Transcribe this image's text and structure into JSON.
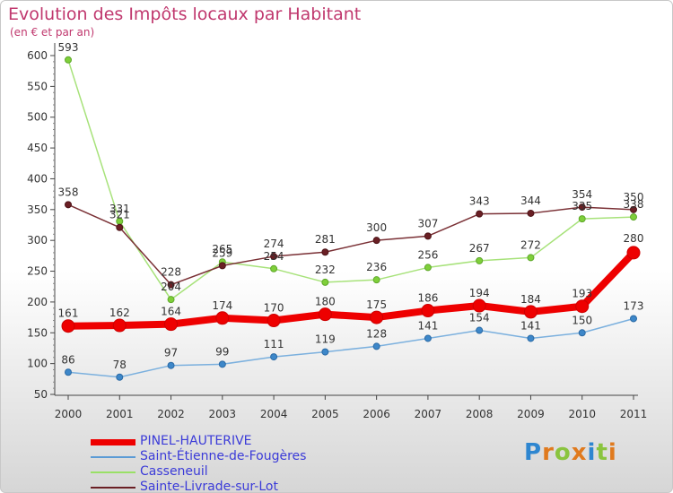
{
  "header": {
    "title": "Evolution des Impôts locaux par Habitant",
    "subtitle": "(en € et par an)"
  },
  "logo": {
    "letters": [
      "P",
      "r",
      "o",
      "x",
      "i",
      "t",
      "i"
    ],
    "colors": [
      "#2e86d0",
      "#e07a1e",
      "#8ac43f",
      "#e07a1e",
      "#2e86d0",
      "#8ac43f",
      "#e07a1e"
    ]
  },
  "chart_data": {
    "type": "line",
    "title": "Evolution des Impôts locaux par Habitant",
    "subtitle": "(en € et par an)",
    "x": [
      "2000",
      "2001",
      "2002",
      "2003",
      "2004",
      "2005",
      "2006",
      "2007",
      "2008",
      "2009",
      "2010",
      "2011"
    ],
    "ylim": [
      50,
      600
    ],
    "yticks": [
      50,
      100,
      150,
      200,
      250,
      300,
      350,
      400,
      450,
      500,
      550,
      600
    ],
    "grid": false,
    "legend_position": "bottom-left",
    "series": [
      {
        "name": "PINEL-HAUTERIVE",
        "color": "#ee0000",
        "values": [
          161,
          162,
          164,
          174,
          170,
          180,
          175,
          186,
          194,
          184,
          193,
          280
        ]
      },
      {
        "name": "Saint-Étienne-de-Fougères",
        "color": "#5b9bd5",
        "values": [
          86,
          78,
          97,
          99,
          111,
          119,
          128,
          141,
          154,
          141,
          150,
          173
        ]
      },
      {
        "name": "Casseneuil",
        "color": "#99e066",
        "values": [
          593,
          331,
          204,
          265,
          254,
          232,
          236,
          256,
          267,
          272,
          335,
          338
        ]
      },
      {
        "name": "Sainte-Livrade-sur-Lot",
        "color": "#6a1f24",
        "values": [
          358,
          321,
          228,
          259,
          274,
          281,
          300,
          307,
          343,
          344,
          354,
          350
        ]
      }
    ]
  }
}
